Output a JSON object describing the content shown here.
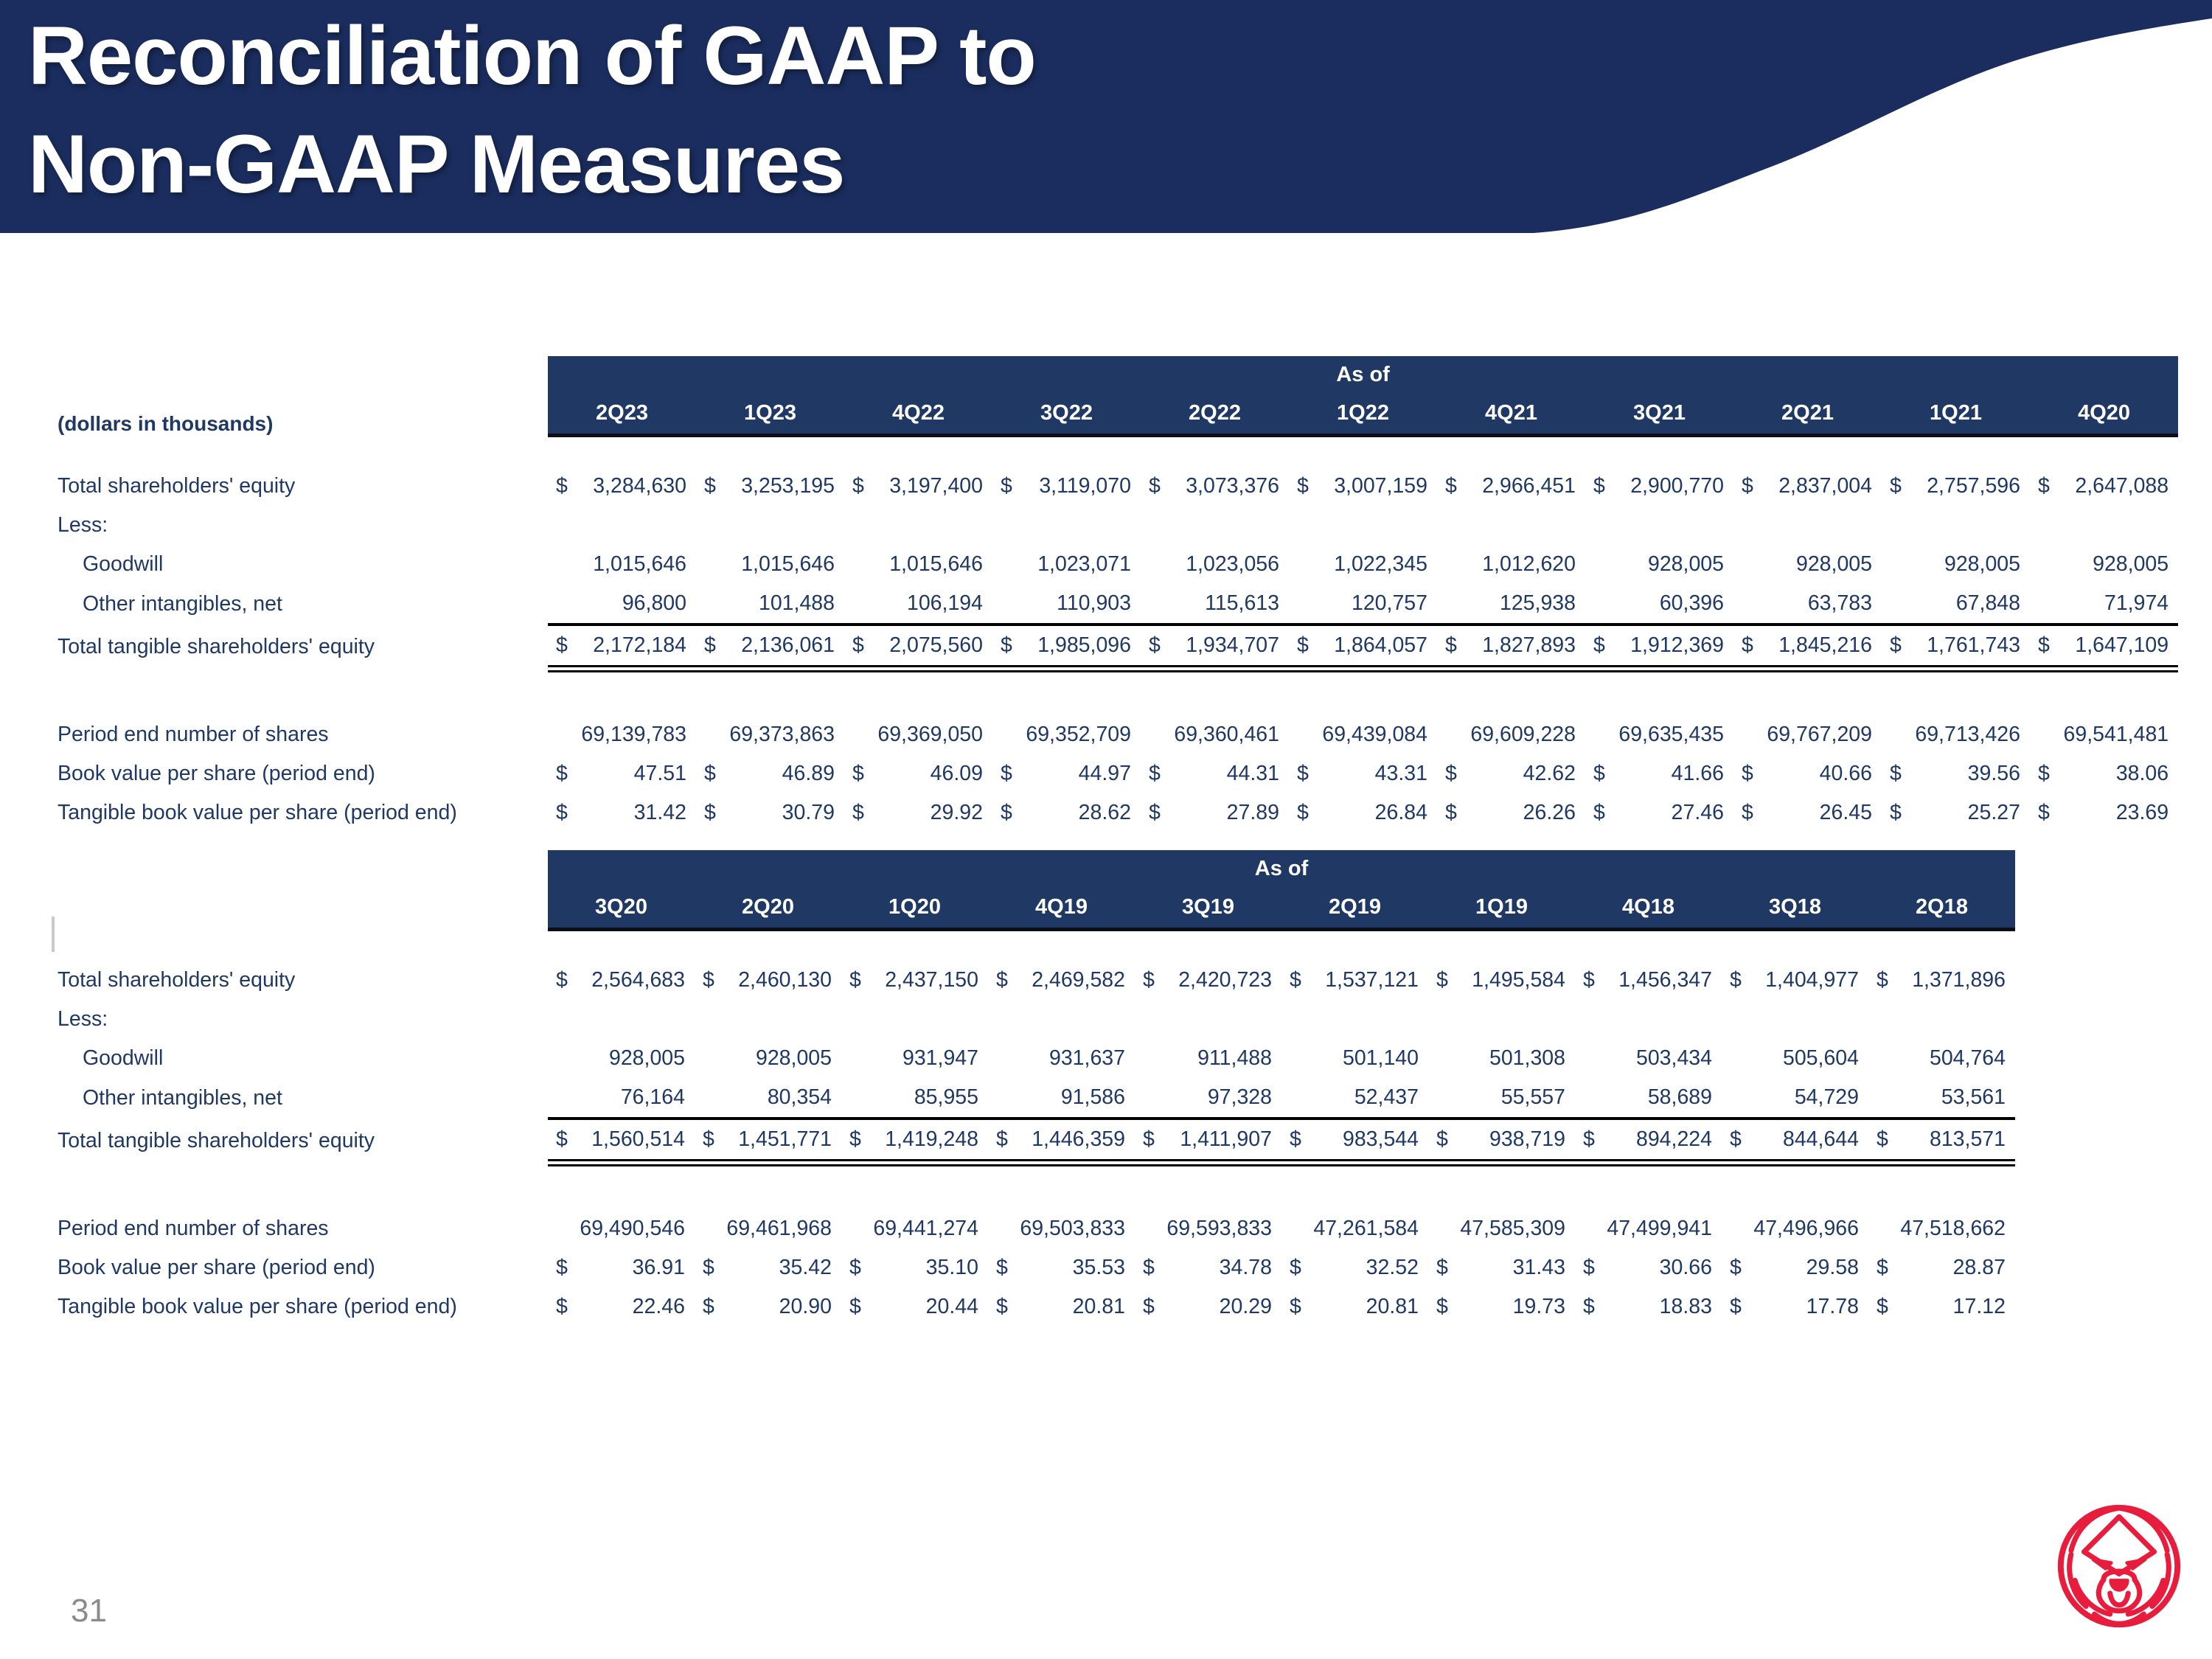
{
  "header": {
    "title_line1": "Reconciliation of GAAP to",
    "title_line2": "Non-GAAP Measures",
    "banner_color": "#1A2D5E"
  },
  "footer": {
    "page_number": "31",
    "logo_color": "#E81C3C",
    "logo_name": "red-lion-circle-logo"
  },
  "table1": {
    "as_of_label": "As of",
    "units_label": "(dollars in thousands)",
    "columns": [
      "2Q23",
      "1Q23",
      "4Q22",
      "3Q22",
      "2Q22",
      "1Q22",
      "4Q21",
      "3Q21",
      "2Q21",
      "1Q21",
      "4Q20"
    ],
    "rows": [
      {
        "label": "Total shareholders' equity",
        "dollar": true,
        "values": [
          "3,284,630",
          "3,253,195",
          "3,197,400",
          "3,119,070",
          "3,073,376",
          "3,007,159",
          "2,966,451",
          "2,900,770",
          "2,837,004",
          "2,757,596",
          "2,647,088"
        ]
      },
      {
        "label": "Less:",
        "type": "label-only"
      },
      {
        "label": "Goodwill",
        "indent": true,
        "values": [
          "1,015,646",
          "1,015,646",
          "1,015,646",
          "1,023,071",
          "1,023,056",
          "1,022,345",
          "1,012,620",
          "928,005",
          "928,005",
          "928,005",
          "928,005"
        ]
      },
      {
        "label": "Other intangibles, net",
        "indent": true,
        "rule_below": true,
        "values": [
          "96,800",
          "101,488",
          "106,194",
          "110,903",
          "115,613",
          "120,757",
          "125,938",
          "60,396",
          "63,783",
          "67,848",
          "71,974"
        ]
      },
      {
        "label": "Total tangible shareholders' equity",
        "dollar": true,
        "double_rule_below": true,
        "values": [
          "2,172,184",
          "2,136,061",
          "2,075,560",
          "1,985,096",
          "1,934,707",
          "1,864,057",
          "1,827,893",
          "1,912,369",
          "1,845,216",
          "1,761,743",
          "1,647,109"
        ]
      },
      {
        "type": "spacer"
      },
      {
        "label": "Period end number of shares",
        "values": [
          "69,139,783",
          "69,373,863",
          "69,369,050",
          "69,352,709",
          "69,360,461",
          "69,439,084",
          "69,609,228",
          "69,635,435",
          "69,767,209",
          "69,713,426",
          "69,541,481"
        ]
      },
      {
        "label": "Book value per share (period end)",
        "dollar": true,
        "values": [
          "47.51",
          "46.89",
          "46.09",
          "44.97",
          "44.31",
          "43.31",
          "42.62",
          "41.66",
          "40.66",
          "39.56",
          "38.06"
        ]
      },
      {
        "label": "Tangible book value per share (period end)",
        "dollar": true,
        "values": [
          "31.42",
          "30.79",
          "29.92",
          "28.62",
          "27.89",
          "26.84",
          "26.26",
          "27.46",
          "26.45",
          "25.27",
          "23.69"
        ]
      }
    ]
  },
  "table2": {
    "as_of_label": "As of",
    "units_label": "",
    "columns": [
      "3Q20",
      "2Q20",
      "1Q20",
      "4Q19",
      "3Q19",
      "2Q19",
      "1Q19",
      "4Q18",
      "3Q18",
      "2Q18"
    ],
    "rows": [
      {
        "label": "Total shareholders' equity",
        "dollar": true,
        "values": [
          "2,564,683",
          "2,460,130",
          "2,437,150",
          "2,469,582",
          "2,420,723",
          "1,537,121",
          "1,495,584",
          "1,456,347",
          "1,404,977",
          "1,371,896"
        ]
      },
      {
        "label": "Less:",
        "type": "label-only"
      },
      {
        "label": "Goodwill",
        "indent": true,
        "values": [
          "928,005",
          "928,005",
          "931,947",
          "931,637",
          "911,488",
          "501,140",
          "501,308",
          "503,434",
          "505,604",
          "504,764"
        ]
      },
      {
        "label": "Other intangibles, net",
        "indent": true,
        "rule_below": true,
        "values": [
          "76,164",
          "80,354",
          "85,955",
          "91,586",
          "97,328",
          "52,437",
          "55,557",
          "58,689",
          "54,729",
          "53,561"
        ]
      },
      {
        "label": "Total tangible shareholders' equity",
        "dollar": true,
        "double_rule_below": true,
        "values": [
          "1,560,514",
          "1,451,771",
          "1,419,248",
          "1,446,359",
          "1,411,907",
          "983,544",
          "938,719",
          "894,224",
          "844,644",
          "813,571"
        ]
      },
      {
        "type": "spacer"
      },
      {
        "label": "Period end number of shares",
        "values": [
          "69,490,546",
          "69,461,968",
          "69,441,274",
          "69,503,833",
          "69,593,833",
          "47,261,584",
          "47,585,309",
          "47,499,941",
          "47,496,966",
          "47,518,662"
        ]
      },
      {
        "label": "Book value per share (period end)",
        "dollar": true,
        "values": [
          "36.91",
          "35.42",
          "35.10",
          "35.53",
          "34.78",
          "32.52",
          "31.43",
          "30.66",
          "29.58",
          "28.87"
        ]
      },
      {
        "label": "Tangible book value per share (period end)",
        "dollar": true,
        "values": [
          "22.46",
          "20.90",
          "20.44",
          "20.81",
          "20.29",
          "20.81",
          "19.73",
          "18.83",
          "17.78",
          "17.12"
        ]
      }
    ]
  }
}
